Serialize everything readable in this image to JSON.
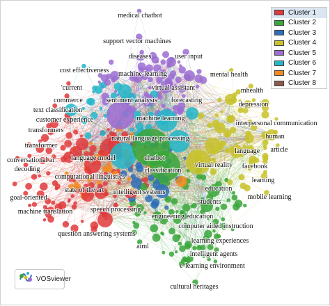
{
  "legend": {
    "items": [
      {
        "label": "Cluster 1",
        "color": "#e03a3c"
      },
      {
        "label": "Cluster 2",
        "color": "#3aa63a"
      },
      {
        "label": "Cluster 3",
        "color": "#2f6fba"
      },
      {
        "label": "Cluster 4",
        "color": "#c8c22a"
      },
      {
        "label": "Cluster 5",
        "color": "#9b6dd1"
      },
      {
        "label": "Cluster 6",
        "color": "#25b7c9"
      },
      {
        "label": "Cluster 7",
        "color": "#f28a1e"
      },
      {
        "label": "Cluster 8",
        "color": "#8c5a4a"
      }
    ],
    "selected": 0
  },
  "brand": {
    "label": "VOSviewer",
    "icon": "vosviewer-logo-icon"
  },
  "network": {
    "labels": [
      {
        "text": "medical chatbot",
        "cluster": 5
      },
      {
        "text": "support vector machines",
        "cluster": 5
      },
      {
        "text": "diseases",
        "cluster": 5
      },
      {
        "text": "user input",
        "cluster": 5
      },
      {
        "text": "cost effectiveness",
        "cluster": 6
      },
      {
        "text": "machine-learning",
        "cluster": 5
      },
      {
        "text": "'current",
        "cluster": 1
      },
      {
        "text": "virtual assistant",
        "cluster": 5
      },
      {
        "text": "commerce",
        "cluster": 1
      },
      {
        "text": "sentiment analysis",
        "cluster": 5
      },
      {
        "text": "forecasting",
        "cluster": 5
      },
      {
        "text": "text classification",
        "cluster": 1
      },
      {
        "text": "customer experience",
        "cluster": 1
      },
      {
        "text": "machine learning",
        "cluster": 5
      },
      {
        "text": "transformers",
        "cluster": 1
      },
      {
        "text": "natural language processing",
        "cluster": 6
      },
      {
        "text": "transformer",
        "cluster": 1
      },
      {
        "text": "language model",
        "cluster": 1
      },
      {
        "text": "chatbot",
        "cluster": 2
      },
      {
        "text": "conversational ai",
        "cluster": 1
      },
      {
        "text": "decoding",
        "cluster": 1
      },
      {
        "text": "computational linguistics",
        "cluster": 1
      },
      {
        "text": "classification",
        "cluster": 2
      },
      {
        "text": "virtual reality",
        "cluster": 4
      },
      {
        "text": "state of the art",
        "cluster": 1
      },
      {
        "text": "intelligent systems",
        "cluster": 3
      },
      {
        "text": "goal-oriented",
        "cluster": 1
      },
      {
        "text": "speech processing",
        "cluster": 1
      },
      {
        "text": "machine translation",
        "cluster": 1
      },
      {
        "text": "engineering education",
        "cluster": 2
      },
      {
        "text": "question answering systems",
        "cluster": 1
      },
      {
        "text": "aiml",
        "cluster": 2
      },
      {
        "text": "intelligent agents",
        "cluster": 2
      },
      {
        "text": "e-learning environment",
        "cluster": 2
      },
      {
        "text": "cultural heritages",
        "cluster": 2
      },
      {
        "text": "mental health",
        "cluster": 4
      },
      {
        "text": "mhealth",
        "cluster": 4
      },
      {
        "text": "depression",
        "cluster": 4
      },
      {
        "text": "interpersonal communication",
        "cluster": 4
      },
      {
        "text": "human",
        "cluster": 4
      },
      {
        "text": "language",
        "cluster": 4
      },
      {
        "text": "article",
        "cluster": 4
      },
      {
        "text": "facebook",
        "cluster": 4
      },
      {
        "text": "learning",
        "cluster": 4
      },
      {
        "text": "education",
        "cluster": 2
      },
      {
        "text": "mobile learning",
        "cluster": 4
      },
      {
        "text": "students",
        "cluster": 2
      },
      {
        "text": "computer aided instruction",
        "cluster": 2
      },
      {
        "text": "learning experiences",
        "cluster": 2
      }
    ]
  }
}
